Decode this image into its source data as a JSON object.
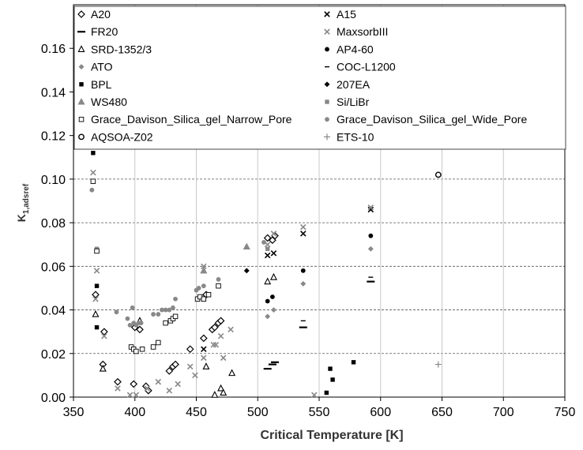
{
  "chart_data": {
    "type": "scatter",
    "xlabel": "Critical Temperature [K]",
    "ylabel_main": "K",
    "ylabel_sub": "1,adsref",
    "xlim": [
      350,
      750
    ],
    "ylim": [
      0.0,
      0.18
    ],
    "xticks": [
      350,
      400,
      450,
      500,
      550,
      600,
      650,
      700,
      750
    ],
    "yticks": [
      0.0,
      0.02,
      0.04,
      0.06,
      0.08,
      0.1,
      0.12,
      0.14,
      0.16
    ],
    "ytick_labels": [
      "0.00",
      "0.02",
      "0.04",
      "0.06",
      "0.08",
      "0.10",
      "0.12",
      "0.14",
      "0.16"
    ],
    "grid": "horizontal dashed",
    "legend_position": "top",
    "series": [
      {
        "name": "A20",
        "marker": "diamond-open",
        "color": "#000000",
        "points": [
          [
            368,
            0.047
          ],
          [
            375,
            0.03
          ],
          [
            374,
            0.015
          ],
          [
            386,
            0.007
          ],
          [
            399,
            0.006
          ],
          [
            400,
            0.032
          ],
          [
            404,
            0.031
          ],
          [
            409,
            0.005
          ],
          [
            411,
            0.003
          ],
          [
            428,
            0.012
          ],
          [
            431,
            0.014
          ],
          [
            433,
            0.015
          ],
          [
            445,
            0.022
          ],
          [
            456,
            0.027
          ],
          [
            458,
            0.047
          ],
          [
            463,
            0.031
          ],
          [
            465,
            0.032
          ],
          [
            468,
            0.034
          ],
          [
            470,
            0.035
          ],
          [
            508,
            0.073
          ],
          [
            512,
            0.072
          ],
          [
            514,
            0.074
          ]
        ]
      },
      {
        "name": "A15",
        "marker": "x",
        "color": "#000000",
        "points": [
          [
            456,
            0.022
          ],
          [
            508,
            0.065
          ],
          [
            513,
            0.066
          ],
          [
            537,
            0.075
          ],
          [
            592,
            0.086
          ]
        ]
      },
      {
        "name": "FR20",
        "marker": "dash",
        "color": "#000000",
        "points": [
          [
            508,
            0.013
          ],
          [
            512,
            0.015
          ],
          [
            514,
            0.016
          ],
          [
            537,
            0.032
          ],
          [
            592,
            0.053
          ]
        ]
      },
      {
        "name": "MaxsorbIII",
        "marker": "x",
        "color": "#888888",
        "points": [
          [
            366,
            0.103
          ],
          [
            368,
            0.045
          ],
          [
            369,
            0.058
          ],
          [
            375,
            0.028
          ],
          [
            386,
            0.004
          ],
          [
            396,
            0.001
          ],
          [
            401,
            0.001
          ],
          [
            410,
            0.004
          ],
          [
            419,
            0.007
          ],
          [
            428,
            0.003
          ],
          [
            435,
            0.006
          ],
          [
            445,
            0.014
          ],
          [
            449,
            0.01
          ],
          [
            456,
            0.06
          ],
          [
            456,
            0.018
          ],
          [
            464,
            0.024
          ],
          [
            466,
            0.024
          ],
          [
            470,
            0.028
          ],
          [
            472,
            0.018
          ],
          [
            478,
            0.031
          ],
          [
            508,
            0.07
          ],
          [
            513,
            0.075
          ],
          [
            537,
            0.078
          ],
          [
            546,
            0.001
          ],
          [
            592,
            0.087
          ]
        ]
      },
      {
        "name": "SRD-1352/3",
        "marker": "triangle-open",
        "color": "#000000",
        "points": [
          [
            368,
            0.038
          ],
          [
            374,
            0.013
          ],
          [
            404,
            0.035
          ],
          [
            458,
            0.014
          ],
          [
            465,
            0.001
          ],
          [
            470,
            0.004
          ],
          [
            472,
            0.002
          ],
          [
            479,
            0.011
          ],
          [
            508,
            0.053
          ],
          [
            513,
            0.055
          ]
        ]
      },
      {
        "name": "AP4-60",
        "marker": "circle-filled",
        "color": "#000000",
        "points": [
          [
            508,
            0.044
          ],
          [
            512,
            0.046
          ],
          [
            537,
            0.058
          ],
          [
            592,
            0.074
          ]
        ]
      },
      {
        "name": "ATO",
        "marker": "diamond-filled",
        "color": "#888888",
        "points": [
          [
            508,
            0.037
          ],
          [
            513,
            0.04
          ],
          [
            537,
            0.052
          ],
          [
            592,
            0.068
          ]
        ]
      },
      {
        "name": "COC-L1200",
        "marker": "dash-small",
        "color": "#000000",
        "points": [
          [
            537,
            0.035
          ],
          [
            592,
            0.055
          ]
        ]
      },
      {
        "name": "BPL",
        "marker": "square-filled",
        "color": "#000000",
        "points": [
          [
            366,
            0.112
          ],
          [
            369,
            0.032
          ],
          [
            369,
            0.051
          ],
          [
            556,
            0.002
          ],
          [
            559,
            0.013
          ],
          [
            561,
            0.008
          ],
          [
            578,
            0.016
          ]
        ]
      },
      {
        "name": "207EA",
        "marker": "diamond-filled",
        "color": "#000000",
        "points": [
          [
            491,
            0.058
          ]
        ]
      },
      {
        "name": "WS480",
        "marker": "triangle-filled",
        "color": "#888888",
        "points": [
          [
            456,
            0.058
          ],
          [
            491,
            0.069
          ]
        ]
      },
      {
        "name": "Si/LiBr",
        "marker": "square-filled",
        "color": "#888888",
        "points": [
          [
            369,
            0.068
          ],
          [
            508,
            0.068
          ]
        ]
      },
      {
        "name": "Grace_Davison_Silica_gel_Narrow_Pore",
        "marker": "square-open",
        "color": "#000000",
        "points": [
          [
            366,
            0.099
          ],
          [
            369,
            0.067
          ],
          [
            397,
            0.023
          ],
          [
            399,
            0.022
          ],
          [
            401,
            0.021
          ],
          [
            406,
            0.022
          ],
          [
            415,
            0.023
          ],
          [
            419,
            0.025
          ],
          [
            425,
            0.034
          ],
          [
            429,
            0.035
          ],
          [
            431,
            0.036
          ],
          [
            433,
            0.037
          ],
          [
            451,
            0.045
          ],
          [
            453,
            0.046
          ],
          [
            456,
            0.045
          ],
          [
            460,
            0.047
          ],
          [
            468,
            0.051
          ]
        ]
      },
      {
        "name": "Grace_Davison_Silica_gel_Wide_Pore",
        "marker": "circle-filled",
        "color": "#888888",
        "points": [
          [
            365,
            0.095
          ],
          [
            385,
            0.039
          ],
          [
            394,
            0.036
          ],
          [
            396,
            0.033
          ],
          [
            398,
            0.041
          ],
          [
            399,
            0.034
          ],
          [
            401,
            0.033
          ],
          [
            403,
            0.034
          ],
          [
            405,
            0.034
          ],
          [
            415,
            0.038
          ],
          [
            419,
            0.038
          ],
          [
            422,
            0.04
          ],
          [
            425,
            0.04
          ],
          [
            428,
            0.04
          ],
          [
            431,
            0.041
          ],
          [
            433,
            0.045
          ],
          [
            450,
            0.049
          ],
          [
            452,
            0.05
          ],
          [
            456,
            0.051
          ],
          [
            468,
            0.054
          ],
          [
            505,
            0.071
          ]
        ]
      },
      {
        "name": "AQSOA-Z02",
        "marker": "circle-open",
        "color": "#000000",
        "points": [
          [
            647,
            0.102
          ]
        ]
      },
      {
        "name": "ETS-10",
        "marker": "plus",
        "color": "#888888",
        "points": [
          [
            647,
            0.015
          ]
        ]
      }
    ]
  }
}
